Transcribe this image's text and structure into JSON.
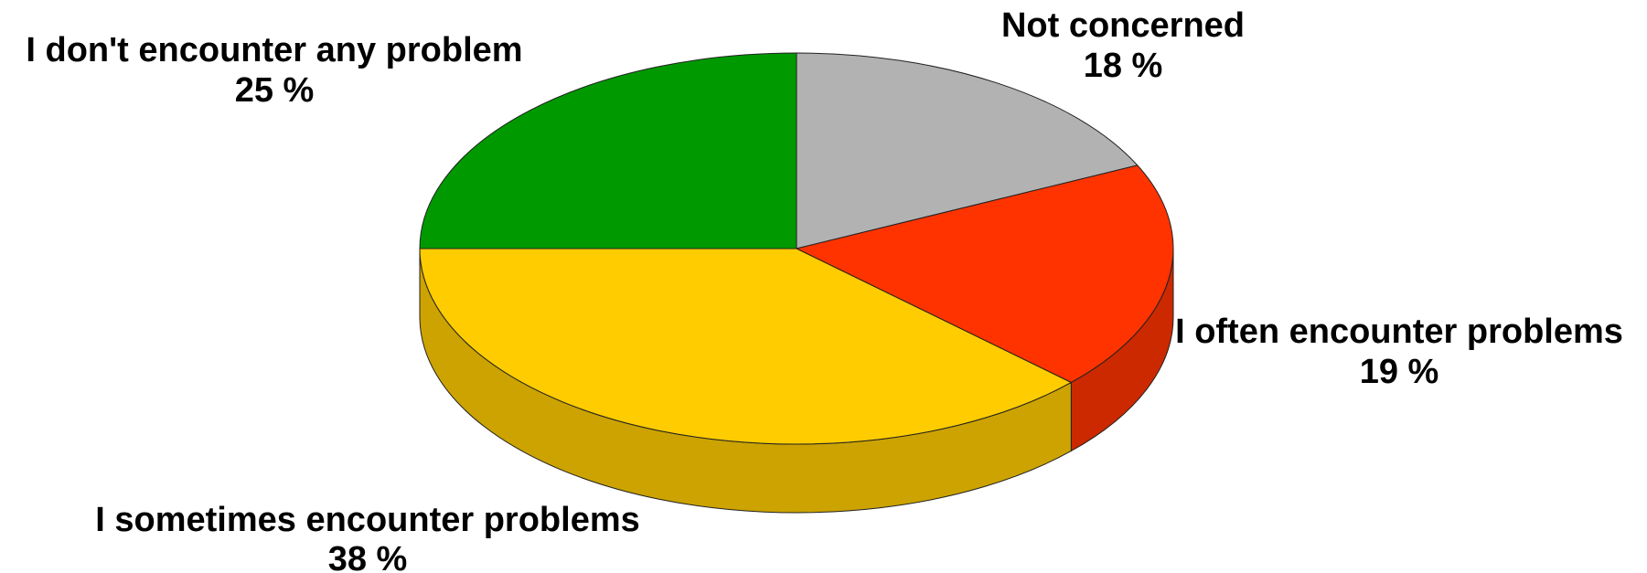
{
  "chart_data": {
    "type": "pie",
    "style": "3d",
    "start_angle_deg": -90,
    "direction": "clockwise",
    "slices": [
      {
        "label": "Not concerned",
        "value": 18,
        "value_text": "18 %",
        "color": "#b2b2b2",
        "side_color": "#8f8f8f"
      },
      {
        "label": "I often encounter problems",
        "value": 19,
        "value_text": "19 %",
        "color": "#ff3300",
        "side_color": "#cc2900"
      },
      {
        "label": "I sometimes encounter problems",
        "value": 38,
        "value_text": "38 %",
        "color": "#ffcc00",
        "side_color": "#cca300"
      },
      {
        "label": "I don't encounter any problem",
        "value": 25,
        "value_text": "25 %",
        "color": "#009900",
        "side_color": "#007a00"
      }
    ]
  }
}
